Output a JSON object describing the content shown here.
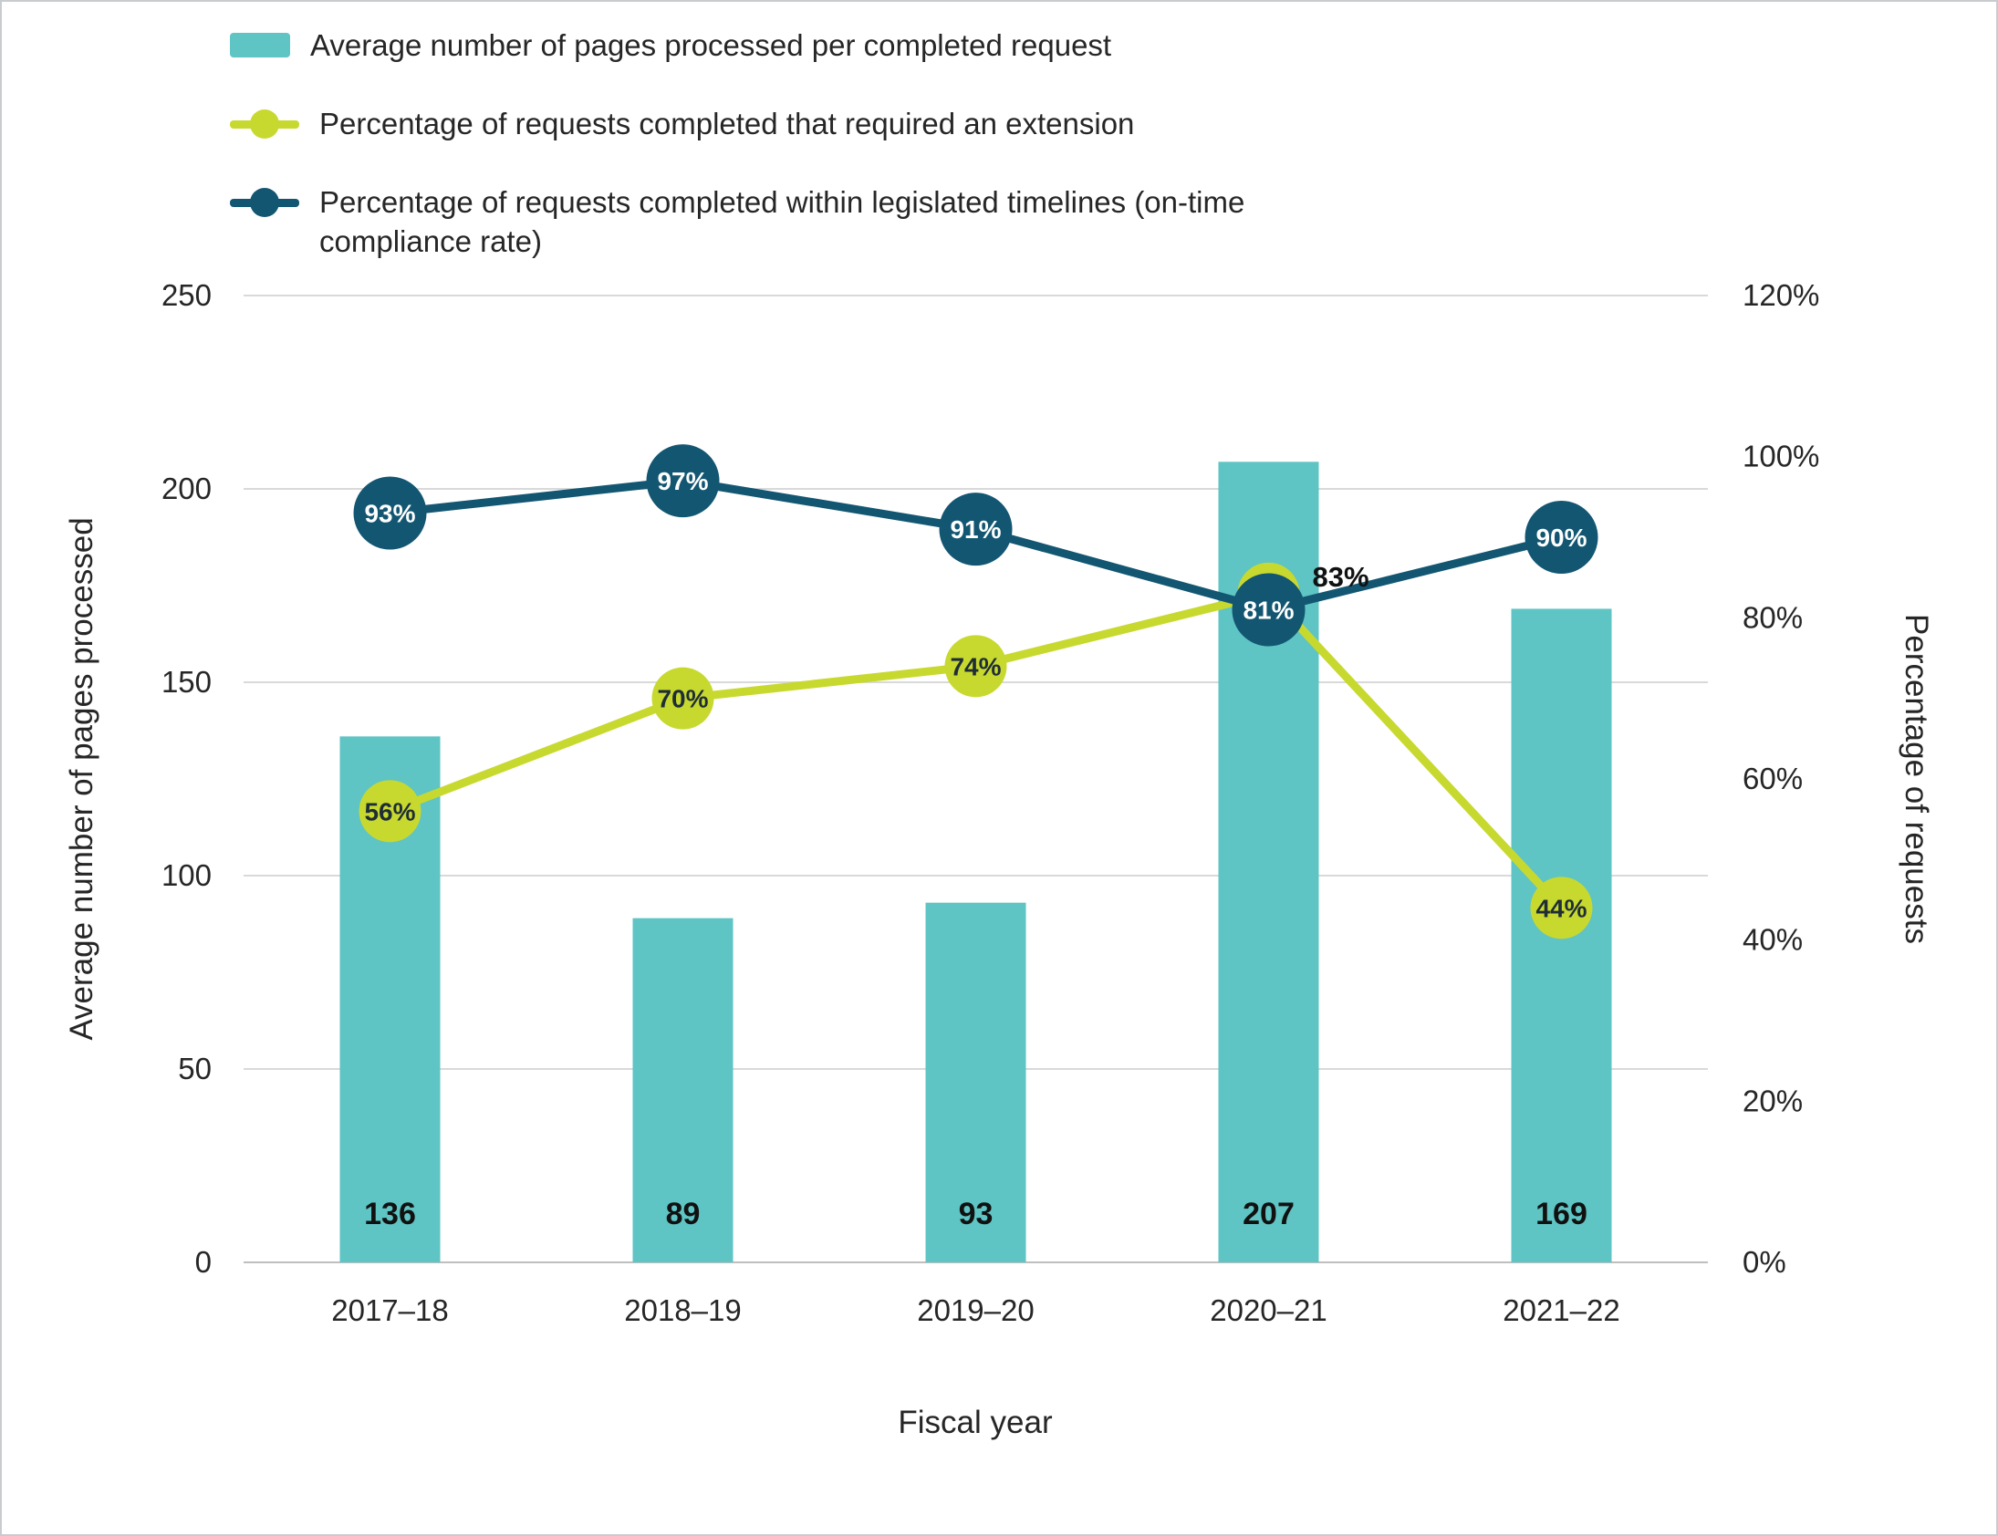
{
  "colors": {
    "bar": "#5ec4c4",
    "extension": "#c7d92f",
    "compliance": "#135672",
    "grid": "#d9d9d9",
    "axis_line": "#bfbfbf",
    "text": "#262626",
    "marker_label_dark": "#1f2d36",
    "marker_label_light": "#ffffff",
    "frame_border": "#c9cccf"
  },
  "legend": {
    "items": [
      {
        "label": "Average number of pages processed per completed request"
      },
      {
        "label": "Percentage of requests completed that required an extension"
      },
      {
        "label": "Percentage of requests completed within legislated timelines (on-time compliance rate)"
      }
    ]
  },
  "chart_data": {
    "type": "combo-bar-line",
    "categories": [
      "2017–18",
      "2018–19",
      "2019–20",
      "2020–21",
      "2021–22"
    ],
    "bar_series": {
      "key": "pages",
      "name": "Average number of pages processed per completed request",
      "axis": "left",
      "values": [
        136,
        89,
        93,
        207,
        169
      ],
      "labels": [
        "136",
        "89",
        "93",
        "207",
        "169"
      ]
    },
    "line_series": [
      {
        "key": "extension",
        "name": "Percentage of requests completed that required an extension",
        "axis": "right",
        "values": [
          56,
          70,
          74,
          83,
          44
        ],
        "labels": [
          "56%",
          "70%",
          "74%",
          "83%",
          "44%"
        ],
        "label_placement": [
          "in",
          "in",
          "in",
          "out",
          "in"
        ]
      },
      {
        "key": "compliance",
        "name": "Percentage of requests completed within legislated timelines (on-time compliance rate)",
        "axis": "right",
        "values": [
          93,
          97,
          91,
          81,
          90
        ],
        "labels": [
          "93%",
          "97%",
          "91%",
          "81%",
          "90%"
        ],
        "label_placement": [
          "in",
          "in",
          "in",
          "in",
          "in"
        ]
      }
    ],
    "left_axis": {
      "title": "Average number of pages processed",
      "min": 0,
      "max": 250,
      "ticks": [
        0,
        50,
        100,
        150,
        200,
        250
      ]
    },
    "right_axis": {
      "title": "Percentage of requests",
      "min": 0,
      "max": 120,
      "ticks": [
        0,
        20,
        40,
        60,
        80,
        100,
        120
      ],
      "tick_labels": [
        "0%",
        "20%",
        "40%",
        "60%",
        "80%",
        "100%",
        "120%"
      ]
    },
    "x_axis": {
      "title": "Fiscal year"
    },
    "grid": "horizontal",
    "legend_position": "top-left"
  }
}
